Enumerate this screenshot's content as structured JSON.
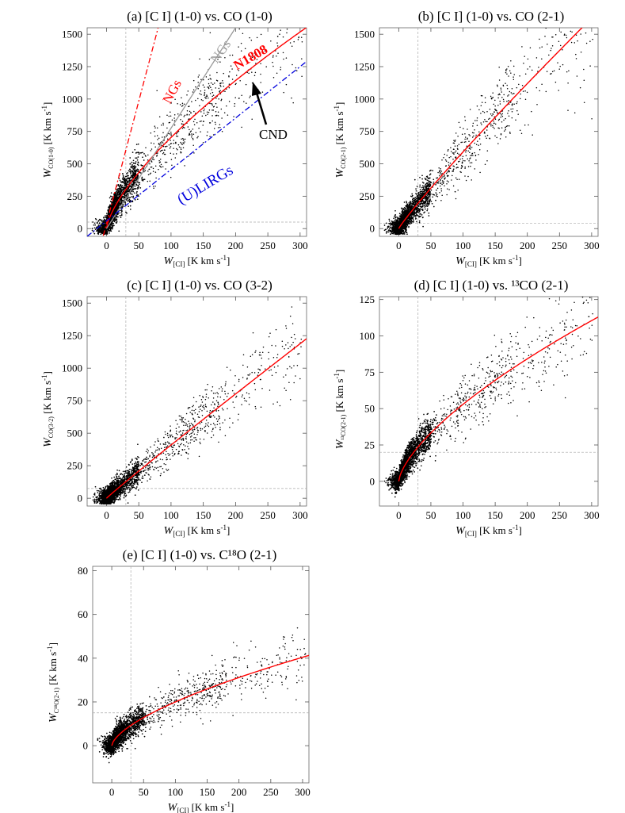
{
  "chart_data": [
    {
      "id": "a",
      "type": "scatter",
      "title": "(a) [C I] (1-0) vs. CO (1-0)",
      "xlabel": {
        "base": "W",
        "sub": "[CI]",
        "unit": " [K km s",
        "sup": "-1",
        "tail": "]"
      },
      "ylabel": {
        "base": "W",
        "sub": "CO(1-0)",
        "unit": " [K km s",
        "sup": "-1",
        "tail": "]"
      },
      "xlim": [
        -30,
        310
      ],
      "ylim": [
        -60,
        1550
      ],
      "xticks": [
        0,
        50,
        100,
        150,
        200,
        250,
        300
      ],
      "yticks": [
        0,
        250,
        500,
        750,
        1000,
        1250,
        1500
      ],
      "ref_x": 30,
      "ref_y": 50,
      "fit": {
        "a": 28,
        "p": 0.7,
        "label": "N1808"
      },
      "lines": [
        {
          "name": "NGs",
          "color": "#ff0000",
          "style": "dashdot",
          "x": [
            -5,
            80
          ],
          "y": [
            -55,
            1550
          ]
        },
        {
          "name": "NGs",
          "color": "#999999",
          "style": "solid",
          "x": [
            0,
            200
          ],
          "y": [
            0,
            1550
          ]
        },
        {
          "name": "(U)LIRGs",
          "color": "#0000dd",
          "style": "dashdot",
          "x": [
            -30,
            310
          ],
          "y": [
            -60,
            1290
          ]
        }
      ],
      "annotations": [
        {
          "text": "NGs",
          "color": "#ff0000"
        },
        {
          "text": "NGs",
          "color": "#999999"
        },
        {
          "text": "N1808",
          "color": "#ff0000"
        },
        {
          "text": "(U)LIRGs",
          "color": "#0000dd"
        },
        {
          "text": "CND",
          "color": "#000000"
        }
      ]
    },
    {
      "id": "b",
      "type": "scatter",
      "title": "(b) [C I] (1-0) vs. CO (2-1)",
      "xlabel": {
        "base": "W",
        "sub": "[CI]",
        "unit": " [K km s",
        "sup": "-1",
        "tail": "]"
      },
      "ylabel": {
        "base": "W",
        "sub": "CO(2-1)",
        "unit": " [K km s",
        "sup": "-1",
        "tail": "]"
      },
      "xlim": [
        -30,
        310
      ],
      "ylim": [
        -60,
        1550
      ],
      "xticks": [
        0,
        50,
        100,
        150,
        200,
        250,
        300
      ],
      "yticks": [
        0,
        250,
        500,
        750,
        1000,
        1250,
        1500
      ],
      "ref_x": 30,
      "ref_y": 40,
      "fit": {
        "a": 8.55,
        "p": 0.92
      }
    },
    {
      "id": "c",
      "type": "scatter",
      "title": "(c) [C I] (1-0) vs. CO (3-2)",
      "xlabel": {
        "base": "W",
        "sub": "[CI]",
        "unit": " [K km s",
        "sup": "-1",
        "tail": "]"
      },
      "ylabel": {
        "base": "W",
        "sub": "CO(3-2)",
        "unit": " [K km s",
        "sup": "-1",
        "tail": "]"
      },
      "xlim": [
        -30,
        310
      ],
      "ylim": [
        -60,
        1550
      ],
      "xticks": [
        0,
        50,
        100,
        150,
        200,
        250,
        300
      ],
      "yticks": [
        0,
        250,
        500,
        750,
        1000,
        1250,
        1500
      ],
      "ref_x": 30,
      "ref_y": 75,
      "fit": {
        "a": 4.7,
        "p": 0.97
      }
    },
    {
      "id": "d",
      "type": "scatter",
      "title": "(d) [C I] (1-0) vs. ¹³CO (2-1)",
      "xlabel": {
        "base": "W",
        "sub": "[CI]",
        "unit": " [K km s",
        "sup": "-1",
        "tail": "]"
      },
      "ylabel": {
        "base": "W",
        "sub": "¹³CO(2-1)",
        "unit": " [K km s",
        "sup": "-1",
        "tail": "]"
      },
      "xlim": [
        -30,
        310
      ],
      "ylim": [
        -17,
        127
      ],
      "xticks": [
        0,
        50,
        100,
        150,
        200,
        250,
        300
      ],
      "yticks": [
        0,
        25,
        50,
        75,
        100,
        125
      ],
      "ref_x": 30,
      "ref_y": 20,
      "fit": {
        "a": 2.42,
        "p": 0.67
      }
    },
    {
      "id": "e",
      "type": "scatter",
      "title": "(e) [C I] (1-0) vs. C¹⁸O (2-1)",
      "xlabel": {
        "base": "W",
        "sub": "[CI]",
        "unit": " [K km s",
        "sup": "-1",
        "tail": "]"
      },
      "ylabel": {
        "base": "W",
        "sub": "C¹⁸O(2-1)",
        "unit": " [K km s",
        "sup": "-1",
        "tail": "]"
      },
      "xlim": [
        -30,
        310
      ],
      "ylim": [
        -17,
        82
      ],
      "xticks": [
        0,
        50,
        100,
        150,
        200,
        250,
        300
      ],
      "yticks": [
        0,
        20,
        40,
        60,
        80
      ],
      "ref_x": 30,
      "ref_y": 15,
      "fit": {
        "a": 1.05,
        "p": 0.64
      }
    }
  ]
}
